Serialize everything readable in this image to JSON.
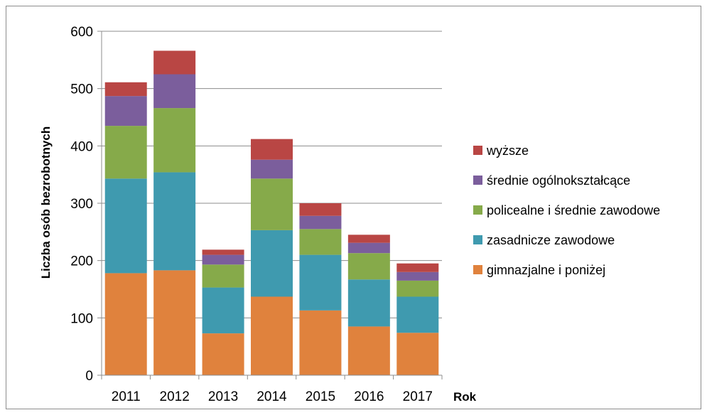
{
  "chart_data": {
    "type": "bar",
    "stacked": true,
    "categories": [
      "2011",
      "2012",
      "2013",
      "2014",
      "2015",
      "2016",
      "2017"
    ],
    "series": [
      {
        "name": "gimnazjalne i poniżej",
        "color": "#E0823D",
        "values": [
          178,
          183,
          73,
          137,
          113,
          85,
          74
        ]
      },
      {
        "name": "zasadnicze zawodowe",
        "color": "#3F9AAF",
        "values": [
          165,
          171,
          80,
          116,
          97,
          82,
          63
        ]
      },
      {
        "name": "policealne i średnie zawodowe",
        "color": "#86AA4A",
        "values": [
          92,
          112,
          40,
          90,
          45,
          46,
          28
        ]
      },
      {
        "name": "średnie ogólnokształcące",
        "color": "#7B5E9C",
        "values": [
          52,
          59,
          17,
          33,
          23,
          18,
          15
        ]
      },
      {
        "name": "wyższe",
        "color": "#B94644",
        "values": [
          24,
          41,
          9,
          36,
          22,
          14,
          15
        ]
      }
    ],
    "xlabel": "Rok",
    "ylabel": "Liczba osób bezrobotnych",
    "ylim": [
      0,
      600
    ],
    "yticks": [
      0,
      100,
      200,
      300,
      400,
      500,
      600
    ],
    "grid": true,
    "legend_position": "right",
    "legend_order": [
      "wyższe",
      "średnie ogólnokształcące",
      "policealne i średnie zawodowe",
      "zasadnicze zawodowe",
      "gimnazjalne i poniżej"
    ]
  }
}
